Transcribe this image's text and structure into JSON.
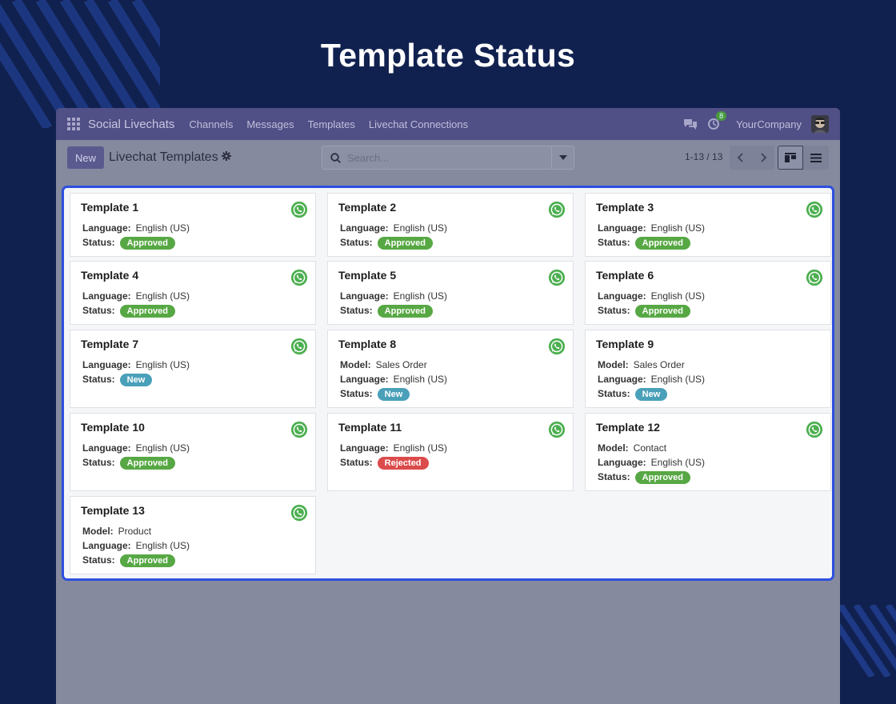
{
  "hero": {
    "title": "Template Status"
  },
  "navbar": {
    "app_name": "Social Livechats",
    "menu": [
      "Channels",
      "Messages",
      "Templates",
      "Livechat Connections"
    ],
    "activity_badge": "8",
    "company": "YourCompany"
  },
  "control": {
    "new_label": "New",
    "view_title": "Livechat Templates",
    "search_placeholder": "Search...",
    "pager": "1-13 / 13"
  },
  "colors": {
    "approved": "#57a844",
    "new": "#4aa0b9",
    "rejected": "#dc4b4b",
    "whatsapp": "#4caf50"
  },
  "field_labels": {
    "model": "Model:",
    "language": "Language:",
    "status": "Status:"
  },
  "templates": [
    {
      "name": "Template 1",
      "model": "",
      "language": "English (US)",
      "status": "Approved",
      "icon": "whatsapp-icon"
    },
    {
      "name": "Template 2",
      "model": "",
      "language": "English (US)",
      "status": "Approved",
      "icon": "whatsapp-icon"
    },
    {
      "name": "Template 3",
      "model": "",
      "language": "English (US)",
      "status": "Approved",
      "icon": "whatsapp-icon"
    },
    {
      "name": "Template 4",
      "model": "",
      "language": "English (US)",
      "status": "Approved",
      "icon": "whatsapp-icon"
    },
    {
      "name": "Template 5",
      "model": "",
      "language": "English (US)",
      "status": "Approved",
      "icon": "whatsapp-icon"
    },
    {
      "name": "Template 6",
      "model": "",
      "language": "English (US)",
      "status": "Approved",
      "icon": "whatsapp-icon"
    },
    {
      "name": "Template 7",
      "model": "",
      "language": "English (US)",
      "status": "New",
      "icon": "whatsapp-icon"
    },
    {
      "name": "Template 8",
      "model": "Sales Order",
      "language": "English (US)",
      "status": "New",
      "icon": "whatsapp-icon"
    },
    {
      "name": "Template 9",
      "model": "Sales Order",
      "language": "English (US)",
      "status": "New",
      "icon": ""
    },
    {
      "name": "Template 10",
      "model": "",
      "language": "English (US)",
      "status": "Approved",
      "icon": "whatsapp-icon"
    },
    {
      "name": "Template 11",
      "model": "",
      "language": "English (US)",
      "status": "Rejected",
      "icon": "whatsapp-icon"
    },
    {
      "name": "Template 12",
      "model": "Contact",
      "language": "English (US)",
      "status": "Approved",
      "icon": "whatsapp-icon"
    },
    {
      "name": "Template 13",
      "model": "Product",
      "language": "English (US)",
      "status": "Approved",
      "icon": "whatsapp-icon"
    }
  ]
}
